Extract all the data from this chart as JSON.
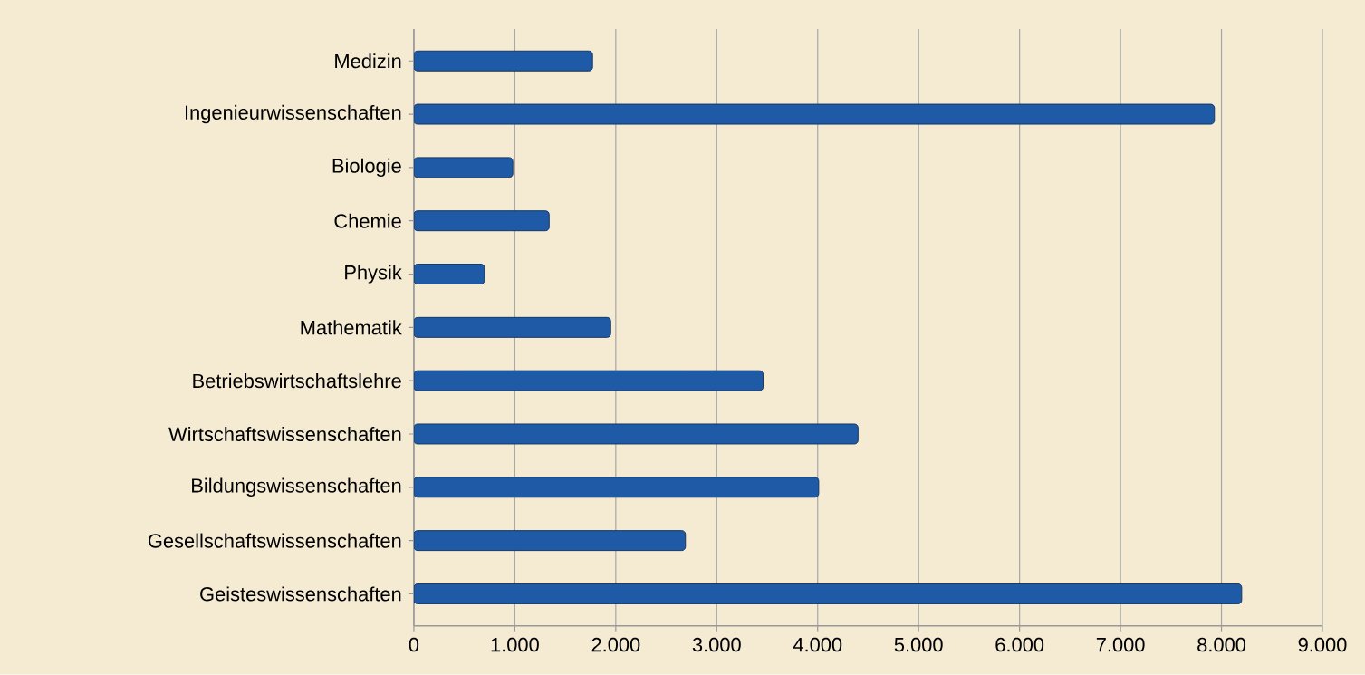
{
  "chart_data": {
    "type": "bar",
    "orientation": "horizontal",
    "categories": [
      "Medizin",
      "Ingenieurwissenschaften",
      "Biologie",
      "Chemie",
      "Physik",
      "Mathematik",
      "Betriebswirtschaftslehre",
      "Wirtschaftswissenschaften",
      "Bildungswissenschaften",
      "Gesellschaftswissenschaften",
      "Geisteswissenschaften"
    ],
    "values": [
      1770,
      7930,
      980,
      1340,
      700,
      1950,
      3460,
      4400,
      4010,
      2690,
      8200
    ],
    "color": "#1f5aa6",
    "xlim": [
      0,
      9000
    ],
    "xticks": [
      0,
      {
        "value": 1000,
        "label": "1.000"
      },
      {
        "value": 2000,
        "label": "2.000"
      },
      {
        "value": 3000,
        "label": "3.000"
      },
      {
        "value": 4000,
        "label": "4.000"
      },
      {
        "value": 5000,
        "label": "5.000"
      },
      {
        "value": 6000,
        "label": "6.000"
      },
      {
        "value": 7000,
        "label": "7.000"
      },
      {
        "value": 8000,
        "label": "8.000"
      },
      {
        "value": 9000,
        "label": "9.000"
      }
    ],
    "grid": "x"
  }
}
